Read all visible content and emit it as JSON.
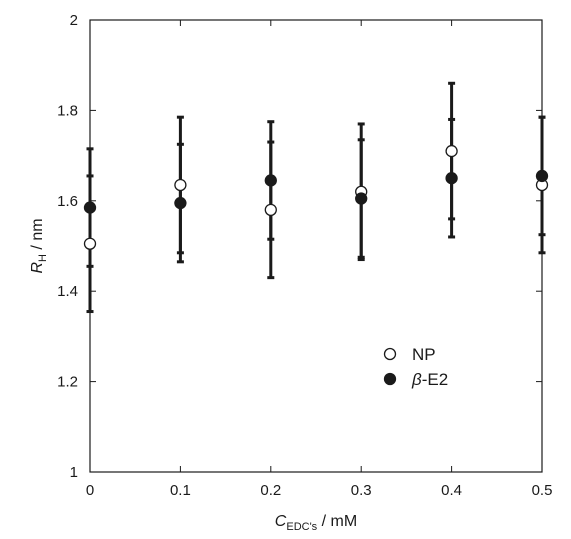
{
  "chart_data": {
    "type": "scatter",
    "xlim": [
      0,
      0.5
    ],
    "ylim": [
      1,
      2
    ],
    "x_ticks": [
      "0",
      "0.1",
      "0.2",
      "0.3",
      "0.4",
      "0.5"
    ],
    "y_ticks": [
      "1",
      "1.2",
      "1.4",
      "1.6",
      "1.8",
      "2"
    ],
    "xlabel": {
      "main": "C",
      "sub": "EDC's",
      "rest": " / mM"
    },
    "ylabel": {
      "main": "R",
      "sub": "H",
      "rest": " / nm"
    },
    "grid": false,
    "legend_position": "lower-right",
    "series": [
      {
        "name": "NP",
        "marker": "open-circle",
        "x": [
          0,
          0.1,
          0.2,
          0.3,
          0.4,
          0.5
        ],
        "y": [
          1.505,
          1.635,
          1.58,
          1.62,
          1.71,
          1.635
        ],
        "err_low": [
          1.355,
          1.485,
          1.43,
          1.47,
          1.56,
          1.485
        ],
        "err_high": [
          1.655,
          1.785,
          1.73,
          1.77,
          1.86,
          1.785
        ]
      },
      {
        "name": "β-E2",
        "legend_label": {
          "greek": "β",
          "rest": "-E2"
        },
        "marker": "filled-circle",
        "x": [
          0,
          0.1,
          0.2,
          0.3,
          0.4,
          0.5
        ],
        "y": [
          1.585,
          1.595,
          1.645,
          1.605,
          1.65,
          1.655
        ],
        "err_low": [
          1.455,
          1.465,
          1.515,
          1.475,
          1.52,
          1.525
        ],
        "err_high": [
          1.715,
          1.725,
          1.775,
          1.735,
          1.78,
          1.785
        ]
      }
    ]
  }
}
